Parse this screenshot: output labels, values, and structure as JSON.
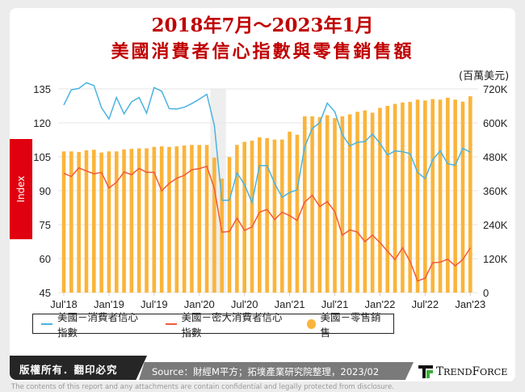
{
  "title_line1": "2018年7月～2023年1月",
  "title_line2": "美國消費者信心指數與零售銷售額",
  "right_axis_unit": "(百萬美元)",
  "left_axis_label": "Index",
  "footer": {
    "copyright": "版權所有．翻印必究",
    "source": "Source：財經M平方；拓墣產業研究院整理，2023/02",
    "logo": "TRENDFORCE",
    "disclaimer": "The contents of this report and any attachments are contain confidential and legally protected from disclosure."
  },
  "colors": {
    "blue": "#4ab3e0",
    "red": "#f05a3c",
    "bar": "#fbb43a",
    "title": "#c00000",
    "index_tab": "#e0000f",
    "shade": "#eeeeee"
  },
  "chart_data": {
    "type": "bar+line",
    "x_tick_labels": [
      "Jul'18",
      "Jan'19",
      "Jul'19",
      "Jan'20",
      "Jul'20",
      "Jan'21",
      "Jul'21",
      "Jan'22",
      "Jul'22",
      "Jan'23"
    ],
    "start_month": "2018-07",
    "end_month": "2023-01",
    "left_axis": {
      "ticks": [
        "135",
        "120",
        "105",
        "90",
        "75",
        "60",
        "45"
      ],
      "range": [
        45,
        135
      ]
    },
    "right_axis": {
      "ticks": [
        "720K",
        "600K",
        "480K",
        "360K",
        "240K",
        "120K",
        "0"
      ],
      "range": [
        0,
        720
      ]
    },
    "shaded_period": [
      "2020-03",
      "2020-04"
    ],
    "grid": true,
    "legend_position": "bottom",
    "series": [
      {
        "name": "美國－消費者信心指數",
        "type": "line",
        "axis": "left",
        "color": "#4ab3e0",
        "values": [
          127.9,
          134.6,
          135.2,
          137.7,
          136.5,
          126.7,
          121.7,
          131.2,
          124,
          129.3,
          131.2,
          124.3,
          135.6,
          134,
          126.3,
          126.1,
          126.9,
          128.5,
          130.5,
          132.6,
          118.9,
          85.8,
          85.8,
          97.9,
          92.7,
          84.8,
          101.1,
          101.1,
          93.3,
          87.1,
          89.2,
          90.4,
          109.4,
          117.5,
          120.1,
          128.7,
          124.9,
          114.8,
          109.8,
          111.4,
          111.7,
          115,
          111,
          105.8,
          107.6,
          107.3,
          106.4,
          98.1,
          95.4,
          103.7,
          107.6,
          101.9,
          101.3,
          108.8,
          107
        ]
      },
      {
        "name": "美國－密大消費者信心指數",
        "type": "line",
        "axis": "left",
        "color": "#f05a3c",
        "values": [
          97.7,
          96.3,
          100.1,
          98.7,
          97.5,
          98.1,
          91.2,
          93.7,
          98.3,
          97.1,
          99.9,
          98.1,
          98.1,
          90,
          93.3,
          95.5,
          96.8,
          99.3,
          99.8,
          100.8,
          91,
          71.7,
          72,
          77.9,
          72.5,
          74,
          80.5,
          81.7,
          77.3,
          80.5,
          79,
          76.9,
          85,
          88,
          83,
          85.2,
          80.8,
          70.4,
          72.7,
          71.7,
          67.5,
          70.4,
          67.1,
          63.2,
          59.6,
          64.8,
          58.8,
          50.1,
          51.4,
          58.2,
          58.4,
          59.8,
          56.8,
          59.6,
          64.8
        ]
      },
      {
        "name": "美國－零售銷售",
        "type": "bar",
        "axis": "right",
        "color": "#fbb43a",
        "unit": "K 百萬美元",
        "values": [
          499,
          499,
          497,
          503,
          505,
          495,
          499,
          499,
          506,
          508,
          510,
          510,
          515,
          517,
          515,
          517,
          520,
          522,
          522,
          522,
          477,
          403,
          479,
          522,
          533,
          537,
          549,
          546,
          541,
          541,
          569,
          558,
          623,
          623,
          620,
          627,
          617,
          623,
          630,
          639,
          644,
          636,
          653,
          660,
          667,
          672,
          674,
          682,
          679,
          684,
          682,
          689,
          682,
          675,
          694
        ]
      }
    ]
  }
}
